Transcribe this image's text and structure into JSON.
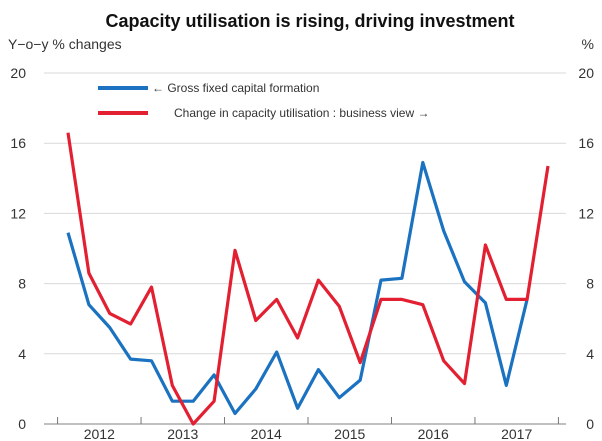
{
  "chart_data": {
    "type": "line",
    "title": "Capacity utilisation is rising, driving investment",
    "left_axis_label": "Y−o−y % changes",
    "right_axis_label": "%",
    "ylim": [
      0,
      20
    ],
    "y_ticks": [
      "0",
      "4",
      "8",
      "12",
      "16",
      "20"
    ],
    "x_labels": [
      "2012",
      "2013",
      "2014",
      "2015",
      "2016",
      "2017"
    ],
    "x_range": [
      0,
      23
    ],
    "grid": "horizontal",
    "legend_position": "top-center",
    "series": [
      {
        "name": "← Gross fixed capital formation",
        "color": "#1a72c0",
        "axis": "left",
        "x": [
          0,
          1,
          2,
          3,
          4,
          5,
          6,
          7,
          8,
          9,
          10,
          11,
          12,
          13,
          14,
          15,
          16,
          17,
          18,
          19,
          20,
          21,
          22
        ],
        "values": [
          10.9,
          6.8,
          5.5,
          3.7,
          3.6,
          1.3,
          1.3,
          2.8,
          0.6,
          2.0,
          4.1,
          0.9,
          3.1,
          1.5,
          2.5,
          8.2,
          8.3,
          14.9,
          11.0,
          8.1,
          6.9,
          2.2,
          7.1
        ]
      },
      {
        "name": "Change in capacity utilisation : business view →",
        "color": "#e32032",
        "axis": "right",
        "x": [
          0,
          1,
          2,
          3,
          4,
          5,
          6,
          7,
          8,
          9,
          10,
          11,
          12,
          13,
          14,
          15,
          16,
          17,
          18,
          19,
          20,
          21,
          22,
          23
        ],
        "values": [
          16.6,
          8.6,
          6.3,
          5.7,
          7.8,
          2.2,
          0.0,
          1.3,
          9.9,
          5.9,
          7.1,
          4.9,
          8.2,
          6.7,
          3.5,
          7.1,
          7.1,
          6.8,
          3.6,
          2.3,
          10.2,
          7.1,
          7.1,
          14.7
        ]
      }
    ]
  }
}
